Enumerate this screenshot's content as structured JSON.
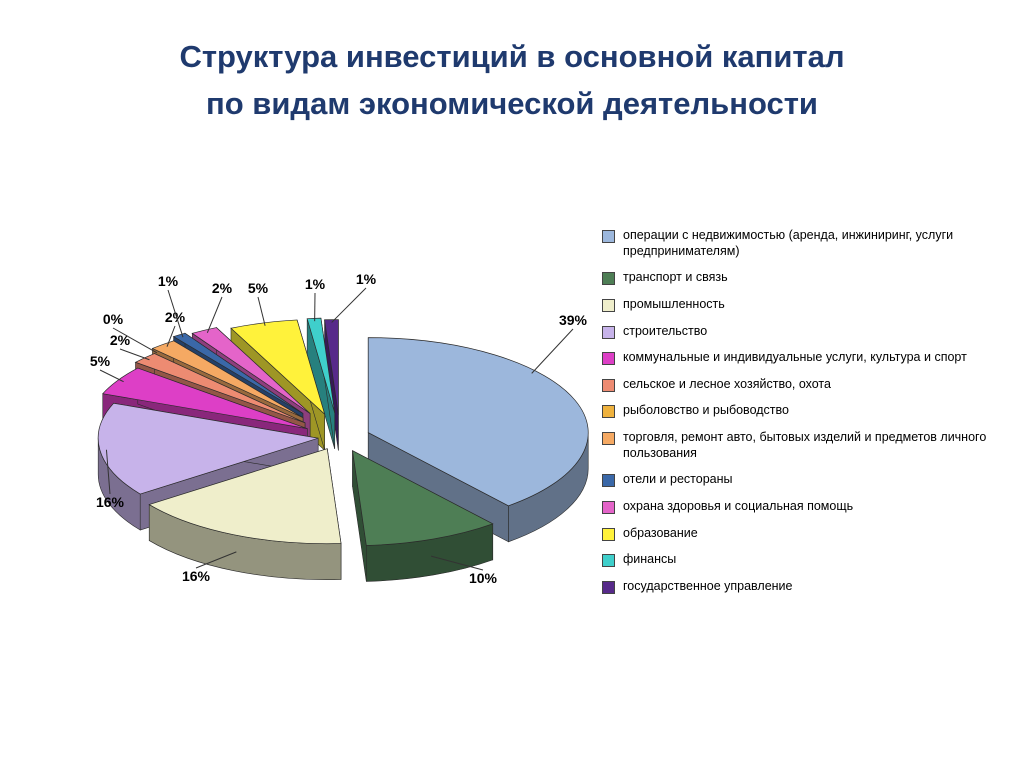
{
  "title": {
    "line1": "Структура инвестиций в основной капитал",
    "line2": "по видам экономической деятельности",
    "color": "#1F3A6E"
  },
  "chart_data": {
    "type": "pie",
    "style": "3d-exploded",
    "title": "Структура инвестиций в основной капитал по видам экономической деятельности",
    "unit": "%",
    "legend_position": "right",
    "slices": [
      {
        "label": "операции с недвижимостью (аренда, инжиниринг, услуги предпринимателям)",
        "value": 39,
        "color": "#9CB7DC"
      },
      {
        "label": "транспорт и связь",
        "value": 10,
        "color": "#4E7E55"
      },
      {
        "label": "промышленность",
        "value": 16,
        "color": "#EFEECB"
      },
      {
        "label": "строительство",
        "value": 16,
        "color": "#C7B3EA"
      },
      {
        "label": "коммунальные и индивидуальные услуги, культура и спорт",
        "value": 5,
        "color": "#DD3FC6"
      },
      {
        "label": "сельское и лесное хозяйство, охота",
        "value": 2,
        "color": "#ED8B72"
      },
      {
        "label": "рыболовство и рыбоводство",
        "value": 0,
        "color": "#EFB23E"
      },
      {
        "label": "торговля, ремонт авто, бытовых изделий и предметов личного пользования",
        "value": 2,
        "color": "#F5A963"
      },
      {
        "label": "отели и рестораны",
        "value": 1,
        "color": "#3A68A8"
      },
      {
        "label": "охрана здоровья и социальная помощь",
        "value": 2,
        "color": "#E464C9"
      },
      {
        "label": "образование",
        "value": 5,
        "color": "#FFF23B"
      },
      {
        "label": "финансы",
        "value": 1,
        "color": "#3FCFCB"
      },
      {
        "label": "государственное управление",
        "value": 1,
        "color": "#572A8A"
      }
    ]
  }
}
